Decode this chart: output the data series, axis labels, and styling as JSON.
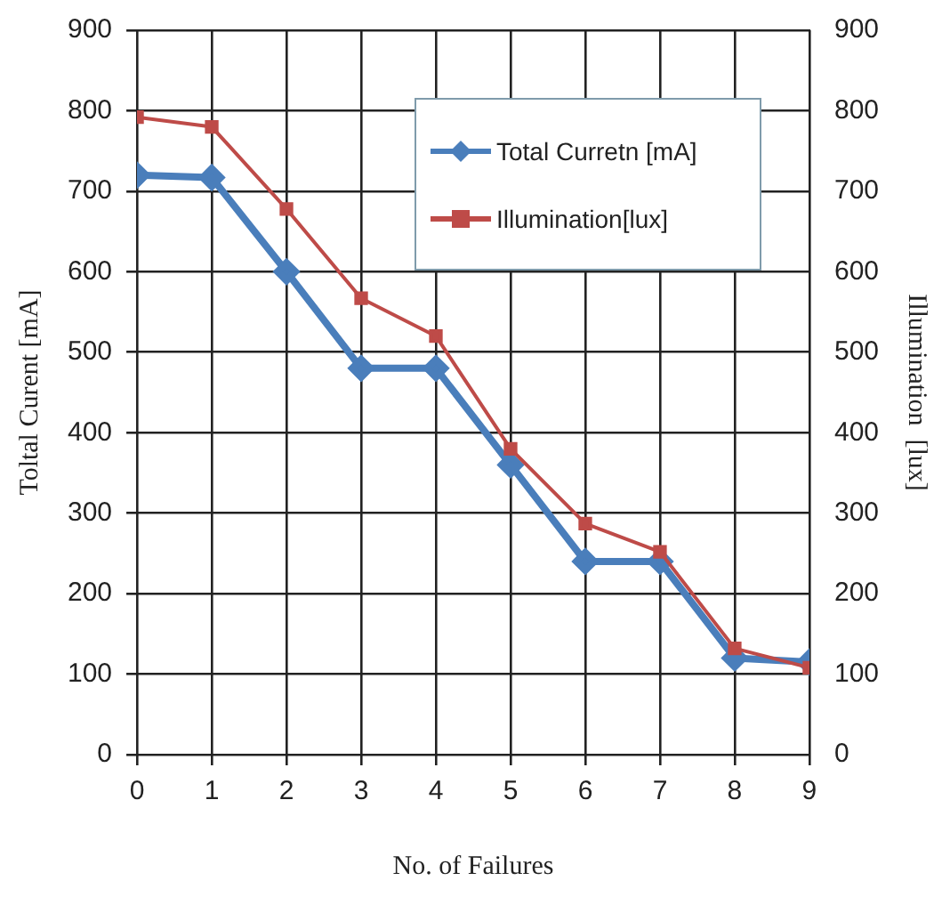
{
  "chart_data": {
    "type": "line",
    "xlabel": "No. of Failures",
    "ylabel": "Toltal Curent [mA]",
    "y2label": "Illumination  [lux]",
    "x": [
      0,
      1,
      2,
      3,
      4,
      5,
      6,
      7,
      8,
      9
    ],
    "xlim": [
      0,
      9
    ],
    "xticks": [
      0,
      1,
      2,
      3,
      4,
      5,
      6,
      7,
      8,
      9
    ],
    "ylim": [
      0,
      900
    ],
    "yticks": [
      0,
      100,
      200,
      300,
      400,
      500,
      600,
      700,
      800,
      900
    ],
    "y2lim": [
      0,
      900
    ],
    "y2ticks": [
      0,
      100,
      200,
      300,
      400,
      500,
      600,
      700,
      800,
      900
    ],
    "grid": true,
    "legend": "top right",
    "line_style": "solid",
    "series": [
      {
        "name": "Total Curretn [mA]",
        "color": "#4a7ebb",
        "marker": "diamond",
        "values": [
          720,
          717,
          600,
          480,
          480,
          360,
          240,
          240,
          120,
          115
        ]
      },
      {
        "name": "Illumination[lux]",
        "color": "#be4b48",
        "marker": "square",
        "axis": "y2",
        "values": [
          792,
          780,
          678,
          567,
          520,
          380,
          287,
          252,
          132,
          108
        ]
      }
    ]
  }
}
